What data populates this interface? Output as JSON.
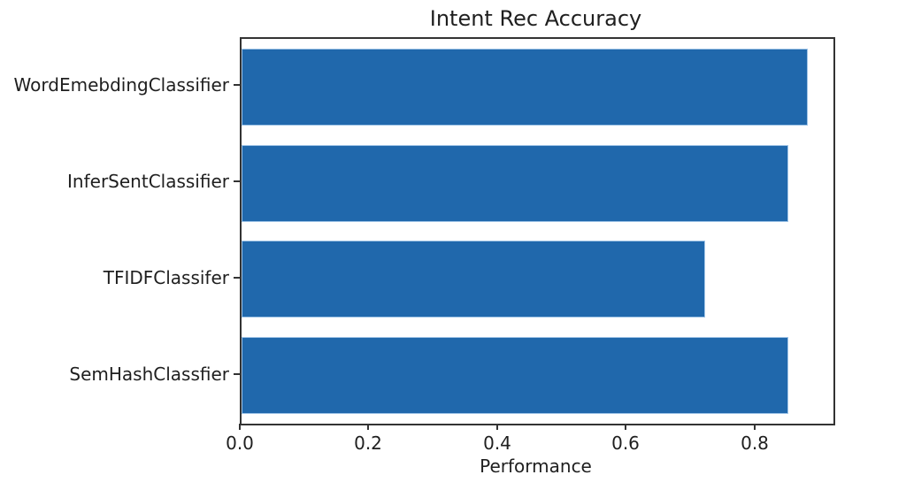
{
  "chart_data": {
    "type": "bar",
    "orientation": "horizontal",
    "title": "Intent Rec Accuracy",
    "xlabel": "Performance",
    "ylabel": "",
    "categories": [
      "WordEmebdingClassifier",
      "InferSentClassifier",
      "TFIDFClassifer",
      "SemHashClassfier"
    ],
    "values": [
      0.88,
      0.85,
      0.72,
      0.85
    ],
    "xlim": [
      0,
      0.92
    ],
    "xticks": [
      0,
      0.2,
      0.4,
      0.6,
      0.8
    ],
    "xtick_labels": [
      "0.0",
      "0.2",
      "0.4",
      "0.6",
      "0.8"
    ],
    "bar_height_frac": 0.8,
    "bar_color": "#2068ac",
    "bar_edge_color": "#9ec3e6",
    "grid": false,
    "legend": null
  }
}
